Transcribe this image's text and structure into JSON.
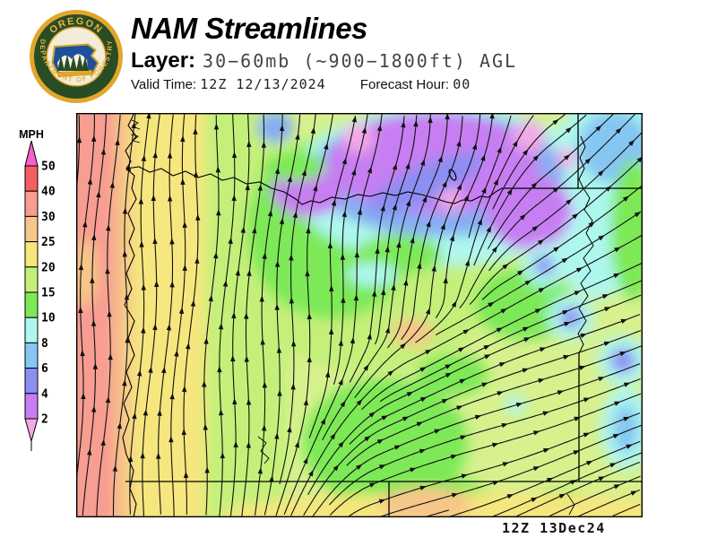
{
  "header": {
    "title": "NAM Streamlines",
    "layer_label": "Layer:",
    "layer_value": "30−60mb (~900−1800ft) AGL",
    "valid_time_label": "Valid Time:",
    "valid_time_value": "12Z 12/13/2024",
    "forecast_hour_label": "Forecast Hour:",
    "forecast_hour_value": "00"
  },
  "logo": {
    "arc_text_top": "OREGON",
    "arc_text_bottom": "DEPARTMENT OF FORESTRY",
    "colors": {
      "gold": "#e2a62a",
      "dark_green": "#2a4c24",
      "cream": "#f2edda",
      "navy": "#1d4f9c",
      "mountain_white": "#f5f2e6"
    }
  },
  "legend": {
    "unit": "MPH",
    "tick_labels": [
      "50",
      "40",
      "30",
      "25",
      "20",
      "15",
      "10",
      "8",
      "6",
      "4",
      "2"
    ],
    "band_colors_top_to_bottom": [
      "#f760c8",
      "#f55f5f",
      "#f79d92",
      "#f7c689",
      "#f6e67e",
      "#c4f07a",
      "#7de956",
      "#aef7ef",
      "#85c6f2",
      "#8b8ef2",
      "#c77ef2",
      "#f3a9e6"
    ]
  },
  "map": {
    "timestamp": "12Z 13Dec24",
    "base_color": "#d7f18d",
    "stroke_color": "#101010",
    "border_color": "#000000"
  }
}
